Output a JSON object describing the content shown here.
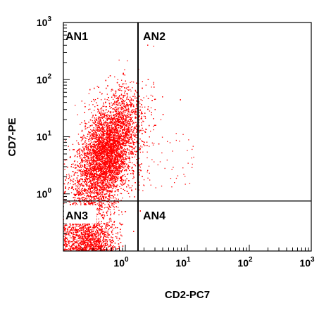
{
  "chart_data": {
    "type": "scatter",
    "title": "",
    "xlabel": "CD2-PC7",
    "ylabel": "CD7-PE",
    "xscale": "log",
    "yscale": "log",
    "xlim": [
      0.1,
      1000
    ],
    "ylim": [
      0.1,
      1000
    ],
    "x_ticks": [
      {
        "value": 1,
        "base": "10",
        "exp": "0"
      },
      {
        "value": 10,
        "base": "10",
        "exp": "1"
      },
      {
        "value": 100,
        "base": "10",
        "exp": "2"
      },
      {
        "value": 1000,
        "base": "10",
        "exp": "3"
      }
    ],
    "y_ticks": [
      {
        "value": 1,
        "base": "10",
        "exp": "0"
      },
      {
        "value": 10,
        "base": "10",
        "exp": "1"
      },
      {
        "value": 100,
        "base": "10",
        "exp": "2"
      },
      {
        "value": 1000,
        "base": "10",
        "exp": "3"
      }
    ],
    "gates": {
      "x": 1.6,
      "y": 0.75
    },
    "quadrants": [
      "AN1",
      "AN2",
      "AN3",
      "AN4"
    ],
    "point_color": "#ff0000",
    "population": {
      "center_x": 0.5,
      "center_y": 5.0,
      "count": 14000
    }
  }
}
